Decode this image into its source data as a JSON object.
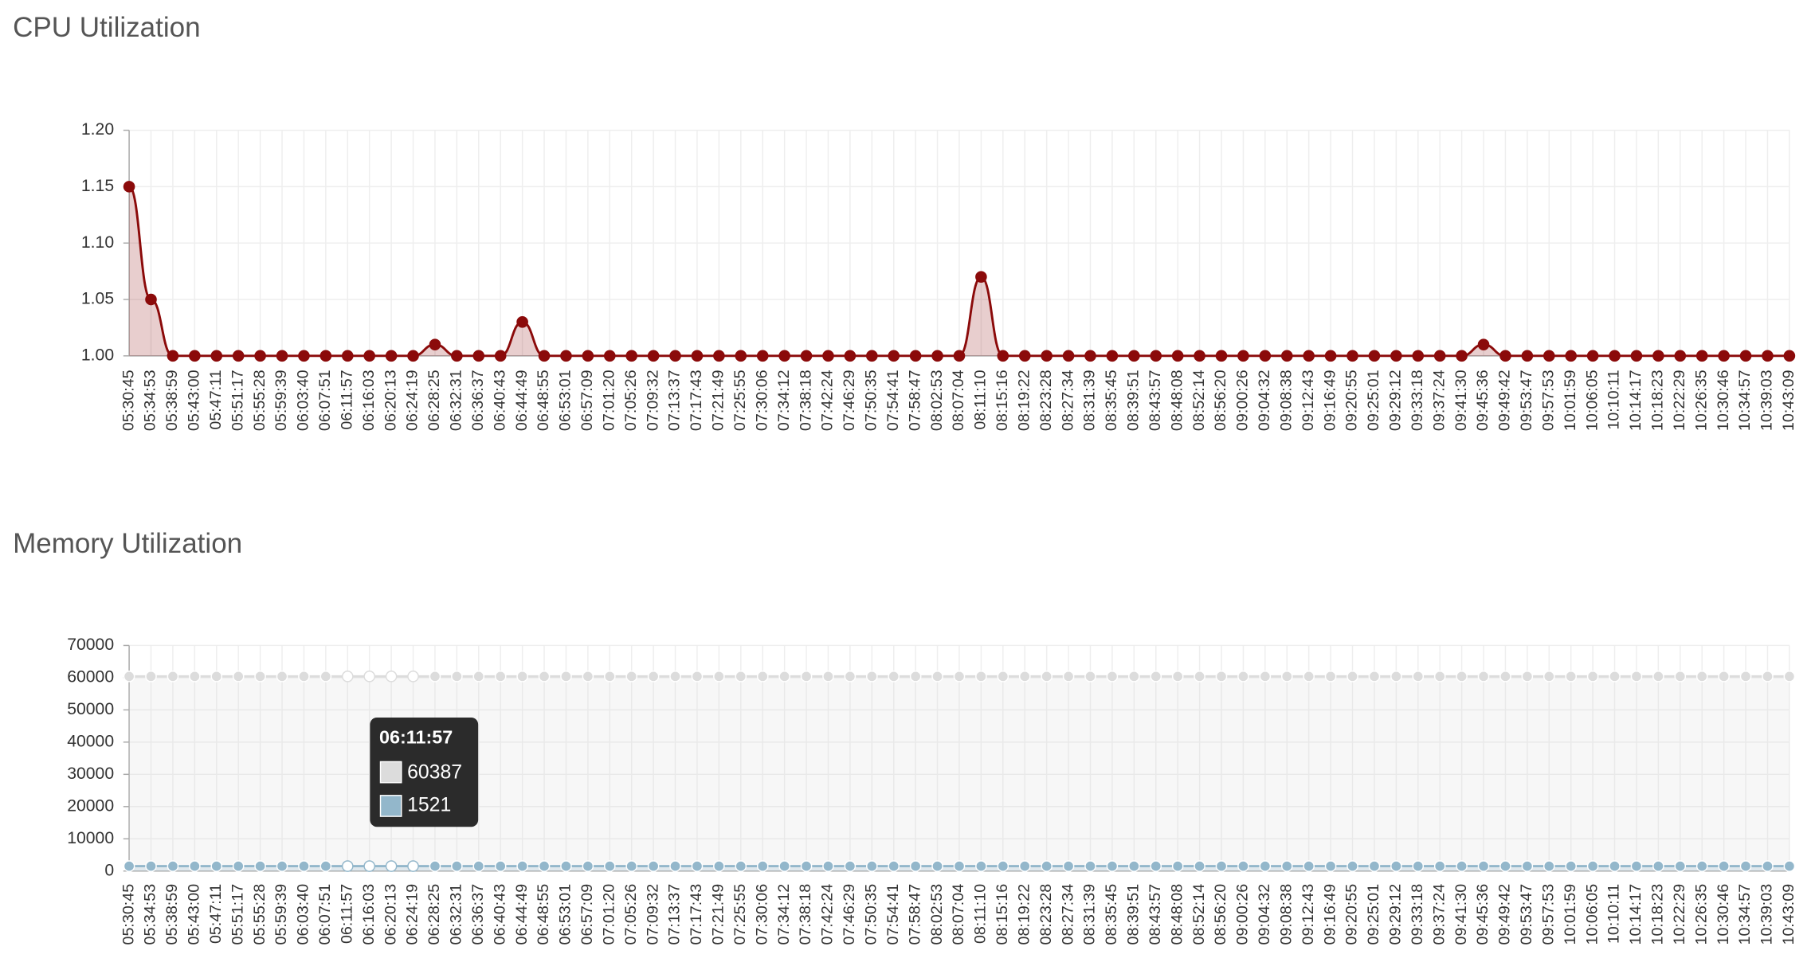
{
  "chart_data": [
    {
      "type": "area",
      "title": "CPU Utilization",
      "categories": [
        "05:30:45",
        "05:34:53",
        "05:38:59",
        "05:43:00",
        "05:47:11",
        "05:51:17",
        "05:55:28",
        "05:59:39",
        "06:03:40",
        "06:07:51",
        "06:11:57",
        "06:16:03",
        "06:20:13",
        "06:24:19",
        "06:28:25",
        "06:32:31",
        "06:36:37",
        "06:40:43",
        "06:44:49",
        "06:48:55",
        "06:53:01",
        "06:57:09",
        "07:01:20",
        "07:05:26",
        "07:09:32",
        "07:13:37",
        "07:17:43",
        "07:21:49",
        "07:25:55",
        "07:30:06",
        "07:34:12",
        "07:38:18",
        "07:42:24",
        "07:46:29",
        "07:50:35",
        "07:54:41",
        "07:58:47",
        "08:02:53",
        "08:07:04",
        "08:11:10",
        "08:15:16",
        "08:19:22",
        "08:23:28",
        "08:27:34",
        "08:31:39",
        "08:35:45",
        "08:39:51",
        "08:43:57",
        "08:48:08",
        "08:52:14",
        "08:56:20",
        "09:00:26",
        "09:04:32",
        "09:08:38",
        "09:12:43",
        "09:16:49",
        "09:20:55",
        "09:25:01",
        "09:29:12",
        "09:33:18",
        "09:37:24",
        "09:41:30",
        "09:45:36",
        "09:49:42",
        "09:53:47",
        "09:57:53",
        "10:01:59",
        "10:06:05",
        "10:10:11",
        "10:14:17",
        "10:18:23",
        "10:22:29",
        "10:26:35",
        "10:30:46",
        "10:34:57",
        "10:39:03",
        "10:43:09"
      ],
      "values": [
        1.15,
        1.05,
        1,
        1,
        1,
        1,
        1,
        1,
        1,
        1,
        1,
        1,
        1,
        1,
        1.01,
        1,
        1,
        1,
        1.03,
        1,
        1,
        1,
        1,
        1,
        1,
        1,
        1,
        1,
        1,
        1,
        1,
        1,
        1,
        1,
        1,
        1,
        1,
        1,
        1,
        1.07,
        1,
        1,
        1,
        1,
        1,
        1,
        1,
        1,
        1,
        1,
        1,
        1,
        1,
        1,
        1,
        1,
        1,
        1,
        1,
        1,
        1,
        1,
        1.01,
        1,
        1,
        1,
        1,
        1,
        1,
        1,
        1,
        1,
        1,
        1,
        1,
        1,
        1
      ],
      "color": "#8b0a0a",
      "ylim": [
        1,
        1.2
      ],
      "yticks": [
        {
          "value": 1,
          "label": "1.00"
        },
        {
          "value": 1.05,
          "label": "1.05"
        },
        {
          "value": 1.1,
          "label": "1.10"
        },
        {
          "value": 1.15,
          "label": "1.15"
        },
        {
          "value": 1.2,
          "label": "1.20"
        }
      ],
      "grid": true
    },
    {
      "type": "area",
      "title": "Memory Utilization",
      "categories": [
        "05:30:45",
        "05:34:53",
        "05:38:59",
        "05:43:00",
        "05:47:11",
        "05:51:17",
        "05:55:28",
        "05:59:39",
        "06:03:40",
        "06:07:51",
        "06:11:57",
        "06:16:03",
        "06:20:13",
        "06:24:19",
        "06:28:25",
        "06:32:31",
        "06:36:37",
        "06:40:43",
        "06:44:49",
        "06:48:55",
        "06:53:01",
        "06:57:09",
        "07:01:20",
        "07:05:26",
        "07:09:32",
        "07:13:37",
        "07:17:43",
        "07:21:49",
        "07:25:55",
        "07:30:06",
        "07:34:12",
        "07:38:18",
        "07:42:24",
        "07:46:29",
        "07:50:35",
        "07:54:41",
        "07:58:47",
        "08:02:53",
        "08:07:04",
        "08:11:10",
        "08:15:16",
        "08:19:22",
        "08:23:28",
        "08:27:34",
        "08:31:39",
        "08:35:45",
        "08:39:51",
        "08:43:57",
        "08:48:08",
        "08:52:14",
        "08:56:20",
        "09:00:26",
        "09:04:32",
        "09:08:38",
        "09:12:43",
        "09:16:49",
        "09:20:55",
        "09:25:01",
        "09:29:12",
        "09:33:18",
        "09:37:24",
        "09:41:30",
        "09:45:36",
        "09:49:42",
        "09:53:47",
        "09:57:53",
        "10:01:59",
        "10:06:05",
        "10:10:11",
        "10:14:17",
        "10:18:23",
        "10:22:29",
        "10:26:35",
        "10:30:46",
        "10:34:57",
        "10:39:03",
        "10:43:09"
      ],
      "series": [
        {
          "color": "#dcdcdc",
          "values": [
            60387,
            60387,
            60387,
            60387,
            60387,
            60387,
            60387,
            60387,
            60387,
            60387,
            60387,
            60387,
            60387,
            60387,
            60387,
            60387,
            60387,
            60387,
            60387,
            60387,
            60387,
            60387,
            60387,
            60387,
            60387,
            60387,
            60387,
            60387,
            60387,
            60387,
            60387,
            60387,
            60387,
            60387,
            60387,
            60387,
            60387,
            60387,
            60387,
            60387,
            60387,
            60387,
            60387,
            60387,
            60387,
            60387,
            60387,
            60387,
            60387,
            60387,
            60387,
            60387,
            60387,
            60387,
            60387,
            60387,
            60387,
            60387,
            60387,
            60387,
            60387,
            60387,
            60387,
            60387,
            60387,
            60387,
            60387,
            60387,
            60387,
            60387,
            60387,
            60387,
            60387,
            60387,
            60387,
            60387,
            60387
          ]
        },
        {
          "color": "#93b7cb",
          "values": [
            1521,
            1521,
            1521,
            1521,
            1521,
            1521,
            1521,
            1521,
            1521,
            1521,
            1521,
            1521,
            1521,
            1521,
            1521,
            1521,
            1521,
            1521,
            1521,
            1521,
            1521,
            1521,
            1521,
            1521,
            1521,
            1521,
            1521,
            1521,
            1521,
            1521,
            1521,
            1521,
            1521,
            1521,
            1521,
            1521,
            1521,
            1521,
            1521,
            1521,
            1521,
            1521,
            1521,
            1521,
            1521,
            1521,
            1521,
            1521,
            1521,
            1521,
            1521,
            1521,
            1521,
            1521,
            1521,
            1521,
            1521,
            1521,
            1521,
            1521,
            1521,
            1521,
            1521,
            1521,
            1521,
            1521,
            1521,
            1521,
            1521,
            1521,
            1521,
            1521,
            1521,
            1521,
            1521,
            1521,
            1521
          ]
        }
      ],
      "ylim": [
        0,
        70000
      ],
      "yticks": [
        0,
        10000,
        20000,
        30000,
        40000,
        50000,
        60000,
        70000
      ],
      "grid": true
    }
  ]
}
